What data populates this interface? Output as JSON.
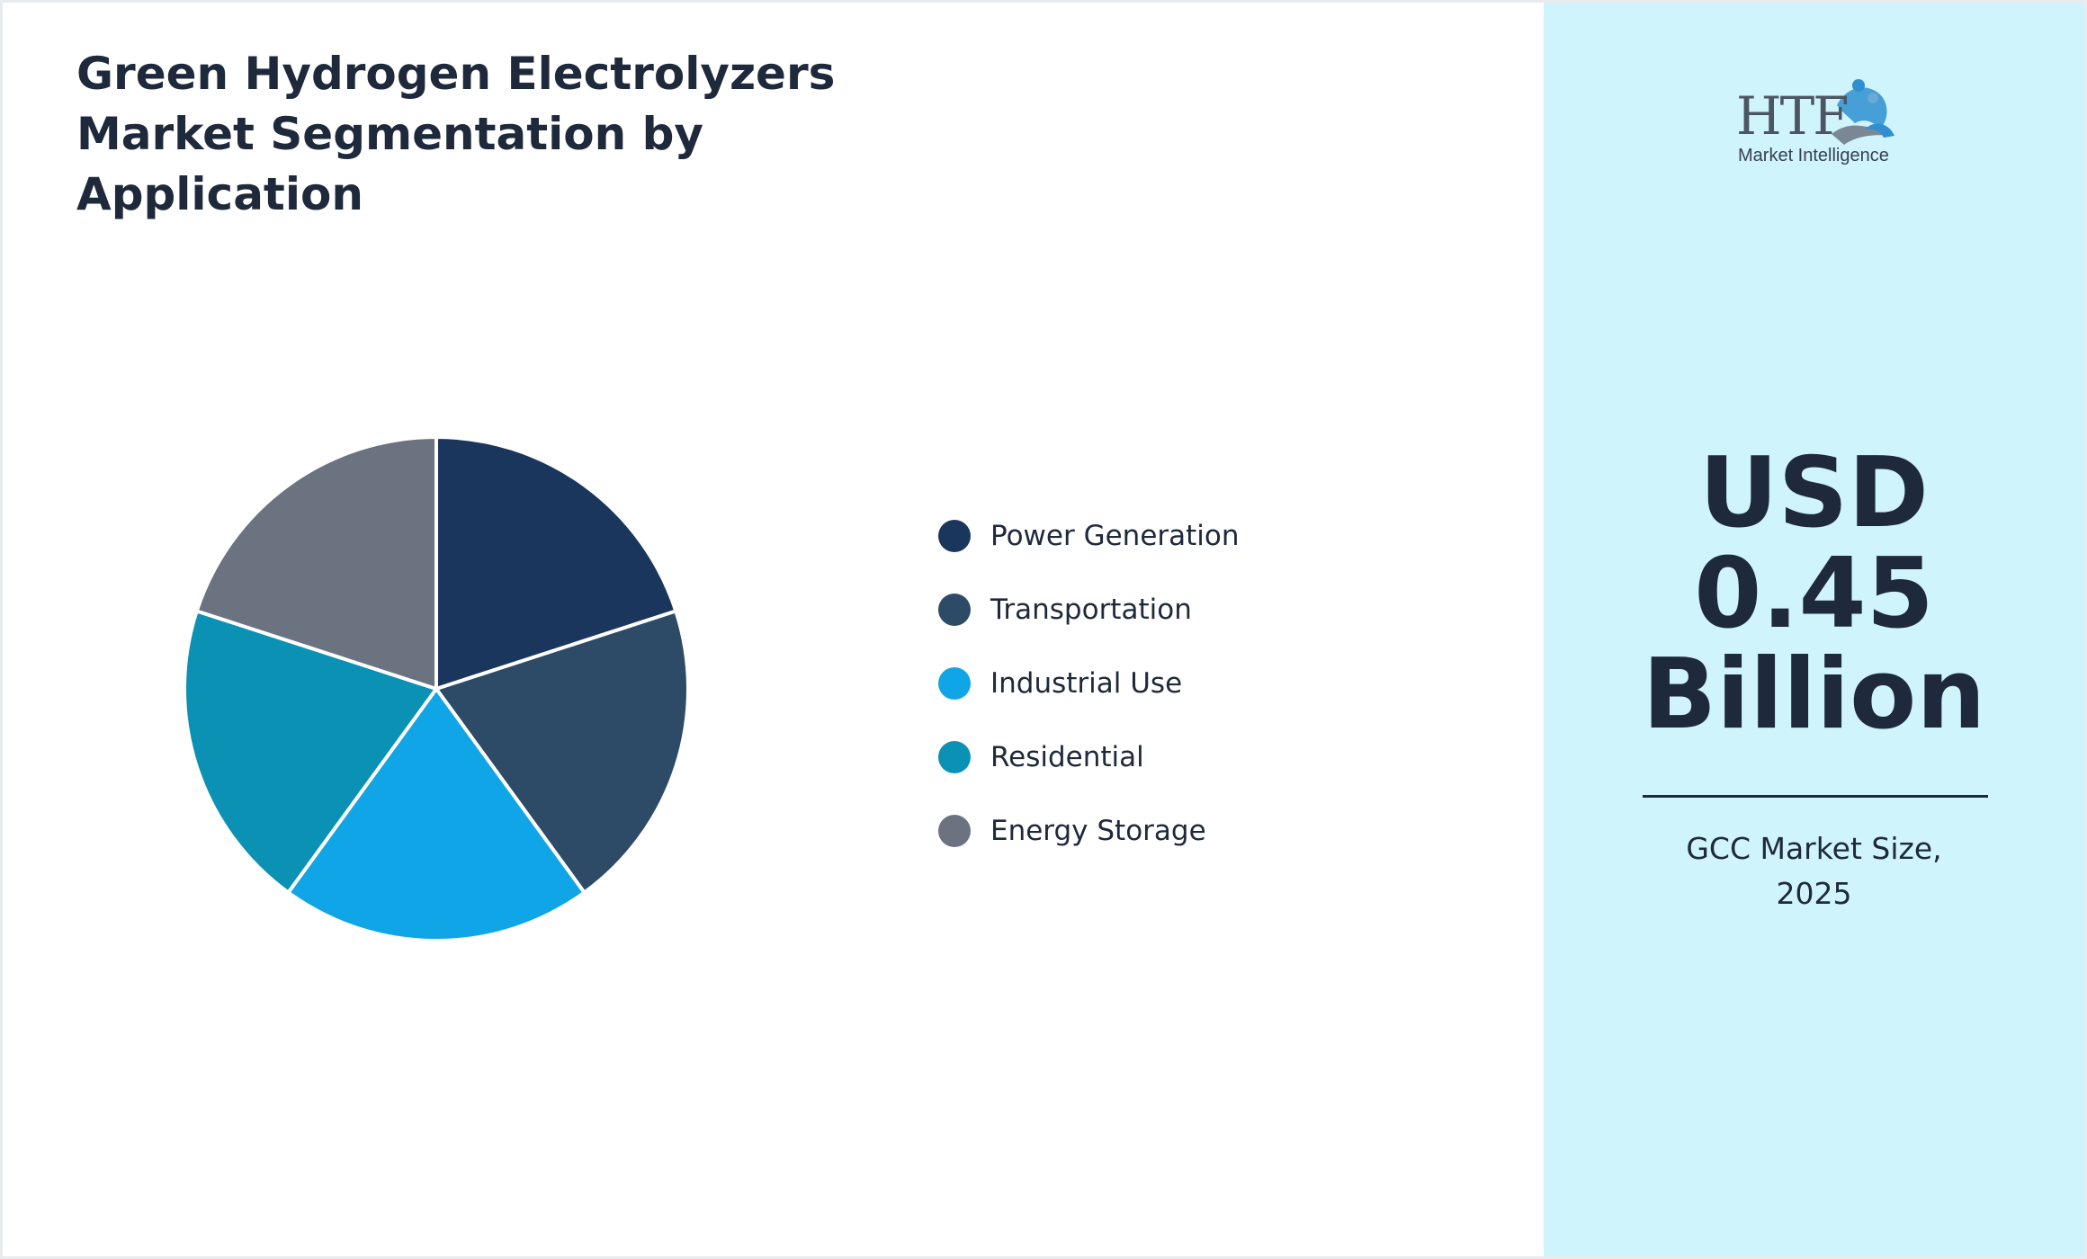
{
  "title": "Green Hydrogen Electrolyzers Market Segmentation by Application",
  "chart_data": {
    "type": "pie",
    "title": "Green Hydrogen Electrolyzers Market Segmentation by Application",
    "categories": [
      "Power Generation",
      "Transportation",
      "Industrial Use",
      "Residential",
      "Energy Storage"
    ],
    "values": [
      20,
      20,
      20,
      20,
      20
    ],
    "colors": [
      "#1b365d",
      "#2d4a66",
      "#10a5e6",
      "#0b91b4",
      "#6b7280"
    ],
    "legend_position": "right"
  },
  "market": {
    "value_lines": [
      "USD",
      "0.45",
      "Billion"
    ],
    "caption": "GCC Market Size, 2025"
  },
  "logo": {
    "text_main": "HTF",
    "text_sub": "Market Intelligence"
  },
  "colors": {
    "right_panel": "#cff4fb",
    "text": "#1e293b"
  }
}
